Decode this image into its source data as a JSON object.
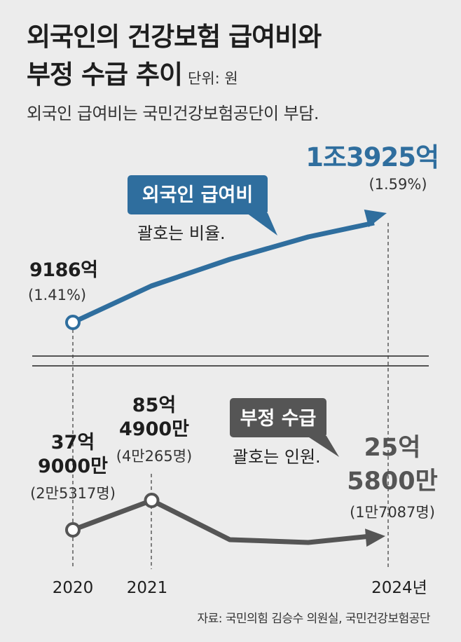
{
  "title_line1": "외국인의 건강보험 급여비와",
  "title_line2": "부정 수급 추이",
  "unit": "단위: 원",
  "subtitle": "외국인 급여비는 국민건강보험공단이 부담.",
  "source": "자료: 국민의힘 김승수 의원실, 국민건강보험공단",
  "colors": {
    "blue": "#2f6e9e",
    "gray": "#555555",
    "background": "#ececec"
  },
  "chart_data": [
    {
      "type": "line",
      "series_label": "외국인 급여비",
      "note": "괄호는 비율.",
      "x": [
        2020,
        2024
      ],
      "values_won_eok": [
        9186,
        13925
      ],
      "value_labels": [
        "9186억",
        "1조3925억"
      ],
      "ratio_labels": [
        "(1.41%)",
        "(1.59%)"
      ]
    },
    {
      "type": "line",
      "series_label": "부정 수급",
      "note": "괄호는 인원.",
      "x": [
        2020,
        2021,
        2024
      ],
      "values_won_man": [
        379000,
        854900,
        255800
      ],
      "value_labels": [
        [
          "37억",
          "9000만"
        ],
        [
          "85억",
          "4900만"
        ],
        [
          "25억",
          "5800만"
        ]
      ],
      "people_labels": [
        "(2만5317명)",
        "(4만265명)",
        "(1만7087명)"
      ],
      "people": [
        25317,
        40265,
        17087
      ]
    }
  ],
  "x_axis_labels": [
    "2020",
    "2021",
    "2024년"
  ]
}
